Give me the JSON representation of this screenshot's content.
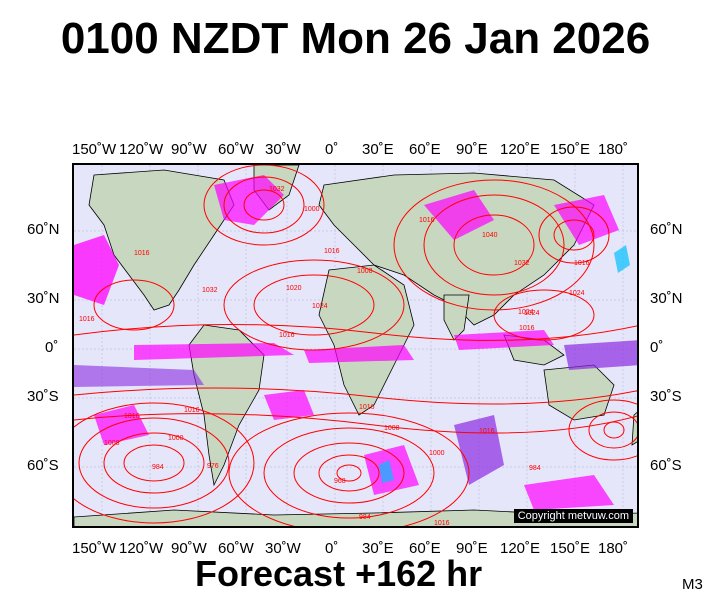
{
  "title": "0100 NZDT Mon 26 Jan 2026",
  "forecast_label": "Forecast +162 hr",
  "model_label": "M3",
  "copyright": "Copyright metvuw.com",
  "top_longitude_labels": [
    "150˚W",
    "120˚W",
    "90˚W",
    "60˚W",
    "30˚W",
    "0˚",
    "30˚E",
    "60˚E",
    "90˚E",
    "120˚E",
    "150˚E",
    "180˚"
  ],
  "bottom_longitude_labels": [
    "150˚W",
    "120˚W",
    "90˚W",
    "60˚W",
    "30˚W",
    "0˚",
    "30˚E",
    "60˚E",
    "90˚E",
    "120˚E",
    "150˚E",
    "180˚"
  ],
  "left_latitude_labels": [
    "60˚N",
    "30˚N",
    "0˚",
    "30˚S",
    "60˚S"
  ],
  "right_latitude_labels": [
    "60˚N",
    "30˚N",
    "0˚",
    "30˚S",
    "60˚S"
  ],
  "isobar_labels": [
    "1032",
    "1000",
    "1016",
    "1024",
    "1020",
    "1008",
    "1016",
    "1032",
    "1016",
    "1016",
    "1032",
    "1024",
    "1016",
    "1016",
    "1008",
    "1000",
    "984",
    "976",
    "968",
    "984",
    "1000",
    "1016",
    "984",
    "1016",
    "1024",
    "1016",
    "1040",
    "1008",
    "1016",
    "1024",
    "1016",
    "1016"
  ],
  "colors": {
    "ocean": "#e6e6fa",
    "land": "#c8d8c0",
    "isobar": "#ff0000",
    "precip_light": "#ff00ff",
    "precip_mid": "#8a2be2",
    "precip_heavy": "#00bfff"
  }
}
